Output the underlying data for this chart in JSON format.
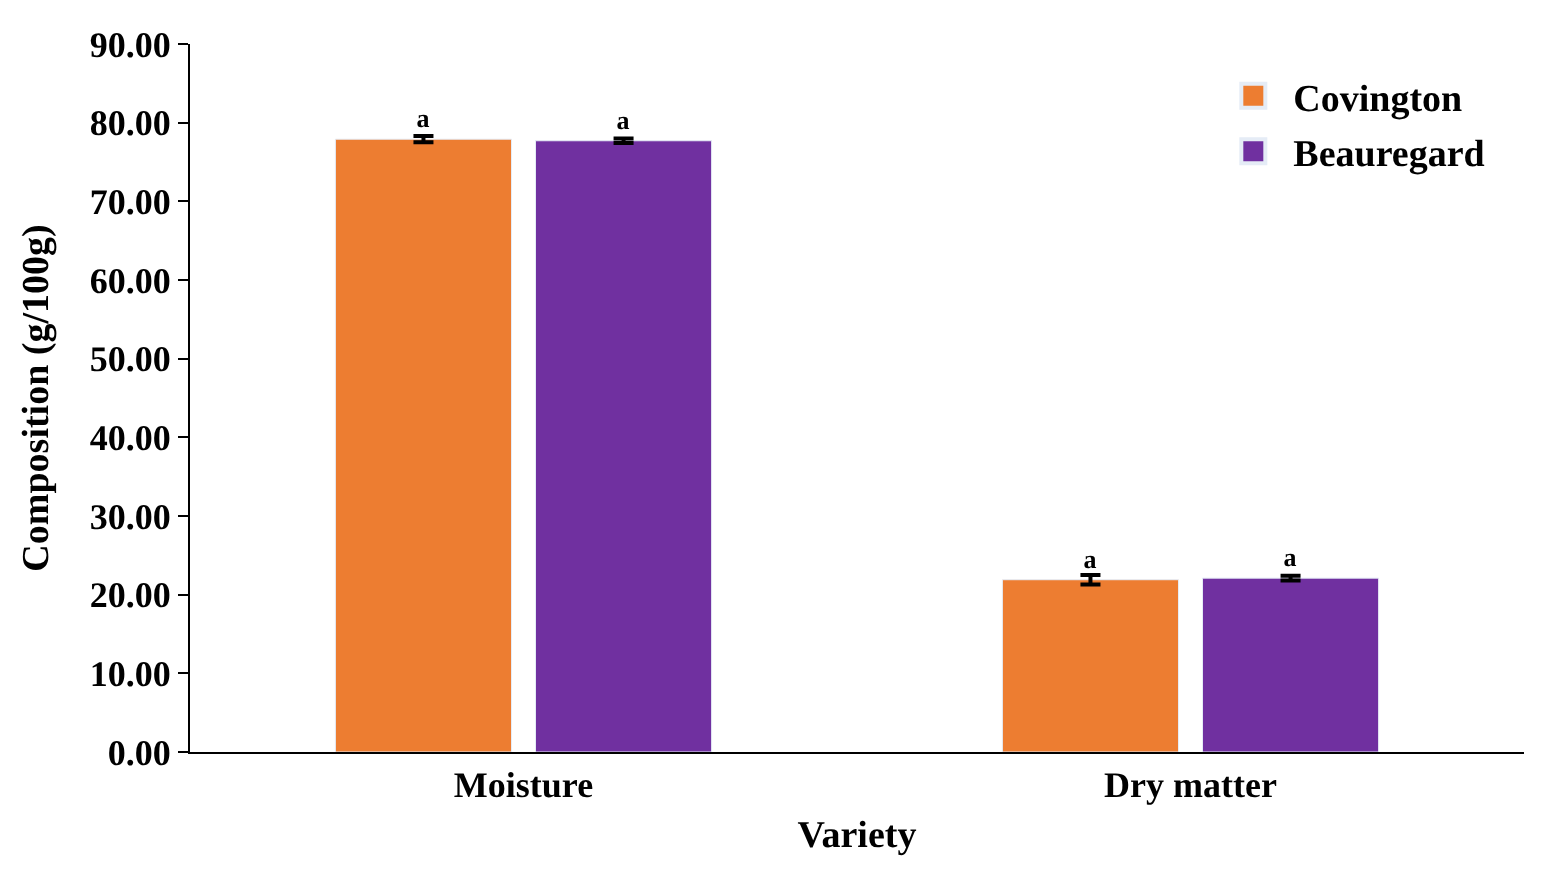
{
  "chart_data": {
    "type": "bar",
    "xlabel": "Variety",
    "ylabel": "Composition (g/100g)",
    "categories": [
      "Moisture",
      "Dry matter"
    ],
    "series": [
      {
        "name": "Covington",
        "color": "#ed7d31",
        "values": [
          77.9,
          21.9
        ],
        "errors": [
          0.4,
          0.6
        ],
        "value_labels": [
          "a",
          "a"
        ]
      },
      {
        "name": "Beauregard",
        "color": "#7030a0",
        "values": [
          77.7,
          22.1
        ],
        "errors": [
          0.3,
          0.3
        ],
        "value_labels": [
          "a",
          "a"
        ]
      }
    ],
    "ylim": [
      0,
      90
    ],
    "yticks": [
      {
        "value": 0,
        "label": "0.00"
      },
      {
        "value": 10,
        "label": "10.00"
      },
      {
        "value": 20,
        "label": "20.00"
      },
      {
        "value": 30,
        "label": "30.00"
      },
      {
        "value": 40,
        "label": "40.00"
      },
      {
        "value": 50,
        "label": "50.00"
      },
      {
        "value": 60,
        "label": "60.00"
      },
      {
        "value": 70,
        "label": "70.00"
      },
      {
        "value": 80,
        "label": "80.00"
      },
      {
        "value": 90,
        "label": "90.00"
      }
    ],
    "legend": "top right"
  }
}
